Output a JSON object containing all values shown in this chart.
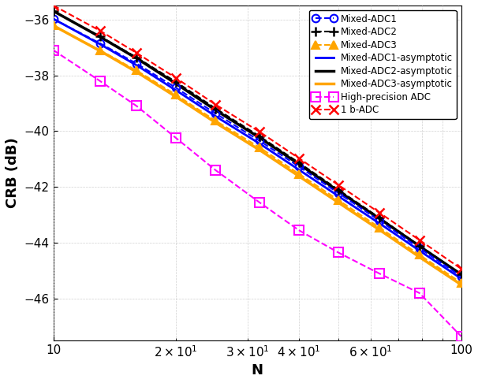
{
  "title": "",
  "xlabel": "N",
  "ylabel": "CRB (dB)",
  "xlim_log": [
    10,
    100
  ],
  "ylim": [
    -47.5,
    -35.5
  ],
  "yticks": [
    -46,
    -44,
    -42,
    -40,
    -38,
    -36
  ],
  "N_values": [
    10,
    13,
    16,
    20,
    25,
    32,
    40,
    50,
    63,
    79,
    100
  ],
  "crb_mixed1": [
    -35.98,
    -36.85,
    -37.58,
    -38.45,
    -39.37,
    -40.34,
    -41.27,
    -42.22,
    -43.2,
    -44.19,
    -45.2
  ],
  "crb_mixed2": [
    -35.7,
    -36.6,
    -37.36,
    -38.24,
    -39.19,
    -40.18,
    -41.13,
    -42.1,
    -43.1,
    -44.1,
    -45.13
  ],
  "crb_mixed3": [
    -36.22,
    -37.1,
    -37.83,
    -38.7,
    -39.63,
    -40.58,
    -41.53,
    -42.47,
    -43.45,
    -44.43,
    -45.43
  ],
  "crb_asym1": [
    -35.98,
    -36.88,
    -37.64,
    -38.54,
    -39.47,
    -40.44,
    -41.38,
    -42.33,
    -43.3,
    -44.28,
    -45.28
  ],
  "crb_asym2": [
    -35.7,
    -36.62,
    -37.39,
    -38.3,
    -39.25,
    -40.23,
    -41.18,
    -42.15,
    -43.13,
    -44.12,
    -45.13
  ],
  "crb_asym3": [
    -36.22,
    -37.12,
    -37.88,
    -38.77,
    -39.7,
    -40.67,
    -41.61,
    -42.56,
    -43.53,
    -44.51,
    -45.5
  ],
  "crb_highprecision": [
    -37.1,
    -38.2,
    -39.1,
    -40.25,
    -41.4,
    -42.55,
    -43.55,
    -44.35,
    -45.1,
    -45.8,
    -47.35
  ],
  "crb_1b": [
    -35.5,
    -36.4,
    -37.2,
    -38.1,
    -39.05,
    -40.02,
    -40.97,
    -41.93,
    -42.92,
    -43.9,
    -44.93
  ],
  "color_mixed1": "#0000FF",
  "color_mixed2": "#000000",
  "color_mixed3": "#FFA500",
  "color_asym1": "#0000FF",
  "color_asym2": "#000000",
  "color_asym3": "#FFA500",
  "color_highprecision": "#FF00FF",
  "color_1b": "#FF0000",
  "bg_color": "#FFFFFF",
  "grid_color": "#CCCCCC"
}
